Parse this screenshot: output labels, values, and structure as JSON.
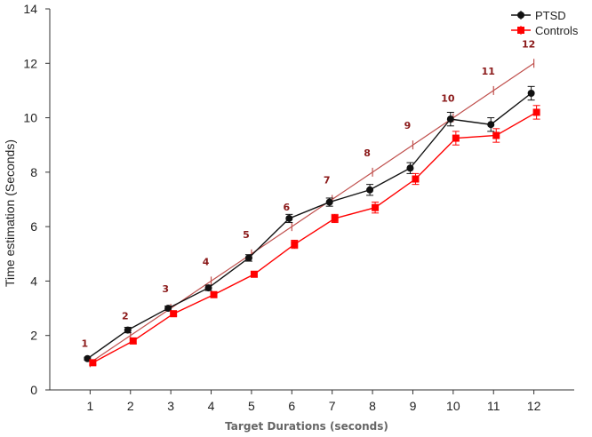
{
  "chart_data": {
    "type": "line",
    "title": "",
    "xlabel": "Target Durations (seconds)",
    "ylabel": "Time estimation (Seconds)",
    "x": [
      1,
      2,
      3,
      4,
      5,
      6,
      7,
      8,
      9,
      10,
      11,
      12
    ],
    "x_tick_labels": [
      "1",
      "2",
      "3",
      "4",
      "5",
      "6",
      "7",
      "8",
      "9",
      "10",
      "11",
      "12"
    ],
    "xlim": [
      0,
      13
    ],
    "ylim": [
      0,
      14
    ],
    "y_ticks": [
      0,
      2,
      4,
      6,
      8,
      10,
      12,
      14
    ],
    "grid": false,
    "legend_position": "top-right",
    "series": [
      {
        "name": "PTSD",
        "color": "#111111",
        "marker": "circle",
        "values": [
          1.15,
          2.2,
          3.0,
          3.75,
          4.85,
          6.3,
          6.9,
          7.35,
          8.15,
          9.95,
          9.75,
          10.9
        ],
        "error": [
          0.05,
          0.1,
          0.08,
          0.1,
          0.12,
          0.15,
          0.15,
          0.2,
          0.2,
          0.25,
          0.25,
          0.25
        ]
      },
      {
        "name": "Controls",
        "color": "#ff0000",
        "marker": "square",
        "values": [
          1.0,
          1.8,
          2.8,
          3.5,
          4.25,
          5.35,
          6.3,
          6.7,
          7.75,
          9.25,
          9.35,
          10.2
        ],
        "error": [
          0.08,
          0.1,
          0.08,
          0.1,
          0.1,
          0.15,
          0.15,
          0.2,
          0.2,
          0.25,
          0.25,
          0.25
        ]
      }
    ],
    "reference_line": {
      "color": "#c0504d",
      "label_color": "#8b1a1a",
      "values": [
        1,
        2,
        3,
        4,
        5,
        6,
        7,
        8,
        9,
        10,
        11,
        12
      ],
      "labels": [
        "1",
        "2",
        "3",
        "4",
        "5",
        "6",
        "7",
        "8",
        "9",
        "10",
        "11",
        "12"
      ]
    }
  }
}
